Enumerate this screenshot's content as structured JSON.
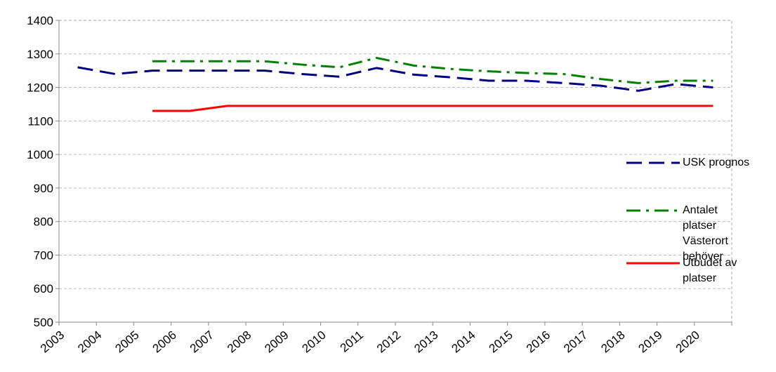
{
  "chart_data": {
    "type": "line",
    "categories": [
      "2003",
      "2004",
      "2005",
      "2006",
      "2007",
      "2008",
      "2009",
      "2010",
      "2011",
      "2012",
      "2013",
      "2014",
      "2015",
      "2016",
      "2017",
      "2018",
      "2019",
      "2020"
    ],
    "series": [
      {
        "name": "USK prognos",
        "color": "#000080",
        "dash": "22,10",
        "values": [
          1260,
          1240,
          1250,
          1250,
          1250,
          1250,
          1240,
          1232,
          1258,
          1238,
          1230,
          1220,
          1220,
          1213,
          1205,
          1190,
          1210,
          1200
        ]
      },
      {
        "name": "Antalet platser Västerort behöver",
        "color": "#008000",
        "dash": "20,8,4,8",
        "values": [
          null,
          null,
          1278,
          1278,
          1278,
          1278,
          1268,
          1260,
          1288,
          1265,
          1255,
          1248,
          1243,
          1240,
          1225,
          1213,
          1220,
          1220
        ]
      },
      {
        "name": "Utbudet av platser",
        "color": "#ff0000",
        "dash": "none",
        "values": [
          null,
          null,
          1130,
          1130,
          1145,
          1145,
          1145,
          1145,
          1145,
          1145,
          1145,
          1145,
          1145,
          1145,
          1145,
          1145,
          1145,
          1145
        ]
      }
    ],
    "ylim": [
      500,
      1400
    ],
    "yticks": [
      500,
      600,
      700,
      800,
      900,
      1000,
      1100,
      1200,
      1300,
      1400
    ],
    "grid": true
  }
}
